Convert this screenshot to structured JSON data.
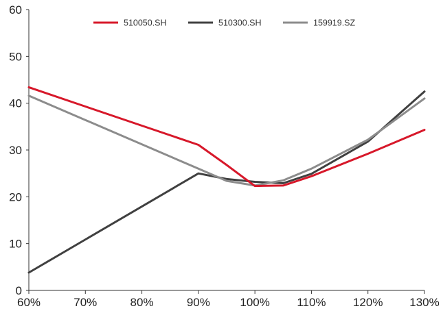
{
  "chart_data": {
    "type": "line",
    "title": "",
    "xlabel": "",
    "ylabel": "",
    "x": [
      60,
      70,
      80,
      90,
      95,
      100,
      105,
      110,
      120,
      130
    ],
    "x_tick_values": [
      60,
      70,
      80,
      90,
      100,
      110,
      120,
      130
    ],
    "x_tick_labels": [
      "60%",
      "70%",
      "80%",
      "90%",
      "100%",
      "110%",
      "120%",
      "130%"
    ],
    "xlim": [
      60,
      130
    ],
    "y_ticks": [
      0,
      10,
      20,
      30,
      40,
      50,
      60
    ],
    "ylim": [
      0,
      60
    ],
    "grid": false,
    "legend_position": "top",
    "series": [
      {
        "name": "510050.SH",
        "color": "#d7182a",
        "values": [
          43.4,
          39.3,
          35.2,
          31.1,
          26.8,
          22.3,
          22.4,
          24.4,
          29.2,
          34.3
        ]
      },
      {
        "name": "510300.SH",
        "color": "#404040",
        "values": [
          3.8,
          null,
          null,
          25.0,
          23.8,
          23.2,
          22.9,
          24.9,
          31.8,
          42.5
        ]
      },
      {
        "name": "159919.SZ",
        "color": "#8c8c8c",
        "values": [
          41.6,
          null,
          null,
          26.0,
          23.4,
          22.4,
          23.5,
          26.0,
          32.2,
          41.0
        ]
      }
    ]
  }
}
